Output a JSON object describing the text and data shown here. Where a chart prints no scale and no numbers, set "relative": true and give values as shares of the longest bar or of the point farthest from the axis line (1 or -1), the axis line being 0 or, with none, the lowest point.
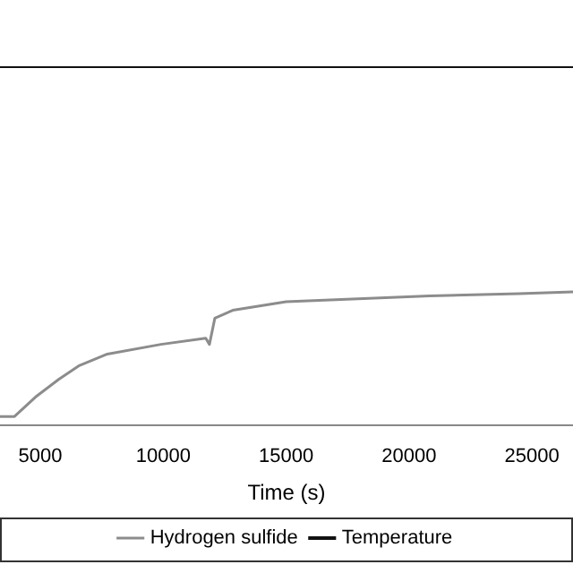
{
  "chart_data": {
    "type": "line",
    "xlabel": "Time (s)",
    "relative": true,
    "xlim": [
      3360,
      26670
    ],
    "xticks": [
      5000,
      10000,
      15000,
      20000,
      25000
    ],
    "grid": false,
    "legend": "bottom",
    "marker": "none",
    "line_style": "solid",
    "series": [
      {
        "name": "Hydrogen sulfide",
        "color": "#8c8c8c",
        "x": [
          3360,
          3950,
          4800,
          5760,
          6560,
          7730,
          9910,
          11730,
          11880,
          12100,
          12830,
          15000,
          17920,
          20830,
          24470,
          26670
        ],
        "values": [
          0.024,
          0.024,
          0.078,
          0.128,
          0.165,
          0.198,
          0.225,
          0.242,
          0.225,
          0.298,
          0.32,
          0.344,
          0.352,
          0.36,
          0.366,
          0.371
        ]
      },
      {
        "name": "Temperature",
        "color": "#111111",
        "x": [
          3360,
          26670
        ],
        "values": [
          1,
          1
        ]
      }
    ]
  }
}
